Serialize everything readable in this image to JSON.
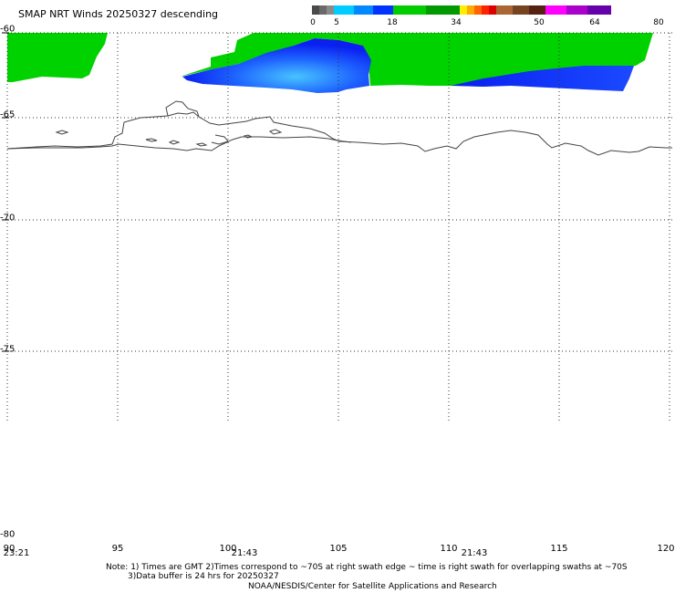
{
  "title": "SMAP NRT Winds  20250327 descending",
  "colorbar": {
    "tick_labels": [
      "0",
      "5",
      "18",
      "34",
      "50",
      "64",
      "80"
    ],
    "segments": [
      {
        "color": "#4a4a4a"
      },
      {
        "color": "#6a6a6a"
      },
      {
        "color": "#8a8a8a"
      },
      {
        "color": "#00ccff"
      },
      {
        "color": "#0088ff"
      },
      {
        "color": "#0033ff"
      },
      {
        "color": "#00cc00"
      },
      {
        "color": "#009900"
      },
      {
        "color": "#ffee00"
      },
      {
        "color": "#ffaa00"
      },
      {
        "color": "#ff6600"
      },
      {
        "color": "#ff2200"
      },
      {
        "color": "#dd0000"
      },
      {
        "color": "#aa6633"
      },
      {
        "color": "#774422"
      },
      {
        "color": "#552211"
      },
      {
        "color": "#ff00ff"
      },
      {
        "color": "#aa00cc"
      },
      {
        "color": "#6600aa"
      }
    ]
  },
  "lat_labels": [
    "-60",
    "-65",
    "-70",
    "-75",
    "-80"
  ],
  "lon_labels": [
    "90",
    "95",
    "100",
    "105",
    "110",
    "115",
    "120"
  ],
  "time_labels": [
    "23:21",
    "21:43",
    "21:43"
  ],
  "notes": {
    "line1": "Note: 1) Times are GMT 2)Times correspond to ~70S at right swath edge ~ time is right swath for overlapping swaths at ~70S",
    "line2": "3)Data buffer is 24 hrs for 20250327",
    "line3": "NOAA/NESDIS/Center for Satellite Applications and Research"
  },
  "colors": {
    "wind_green": "#00d200",
    "wind_blue": "#0a22ff",
    "wind_lightblue": "#3aa8ff",
    "coastline": "#444444",
    "grid": "#333333"
  }
}
